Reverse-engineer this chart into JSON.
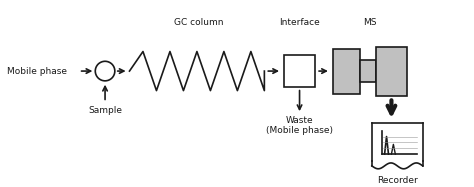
{
  "bg_color": "#ffffff",
  "line_color": "#1a1a1a",
  "fill_color": "#c0c0c0",
  "mobile_phase_label": "Mobile phase",
  "sample_label": "Sample",
  "gc_column_label": "GC column",
  "interface_label": "Interface",
  "ms_label": "MS",
  "waste_label": "Waste\n(Mobile phase)",
  "recorder_label": "Recorder",
  "figsize": [
    4.74,
    1.87
  ],
  "dpi": 100
}
